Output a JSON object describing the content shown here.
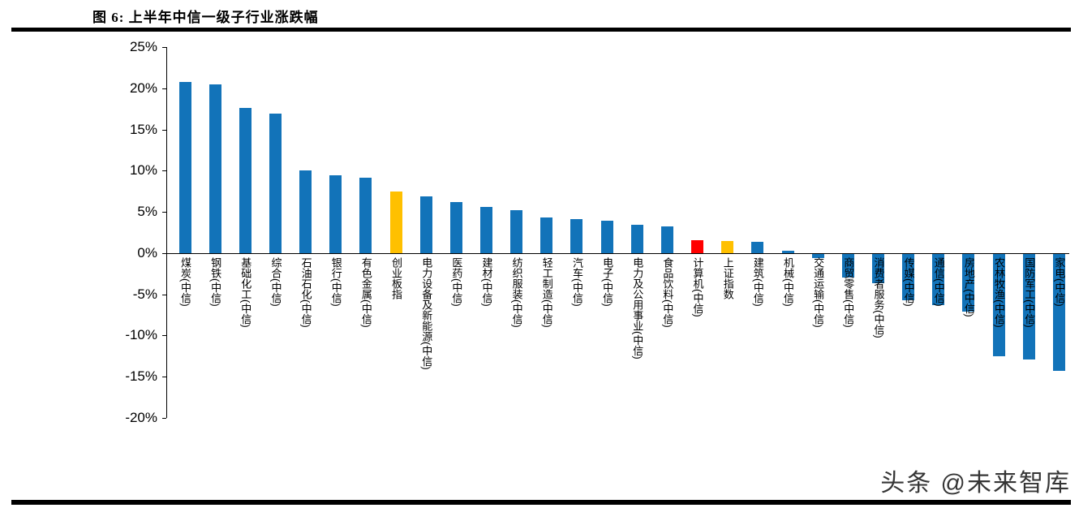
{
  "figure": {
    "title": "图 6:  上半年中信一级子行业涨跌幅",
    "watermark": "头条 @未来智库"
  },
  "chart_data": {
    "type": "bar",
    "title": "上半年中信一级子行业涨跌幅",
    "xlabel": "",
    "ylabel": "",
    "grid": false,
    "legend": "none",
    "ylim": [
      -20,
      25
    ],
    "y_ticks": [
      "25%",
      "20%",
      "15%",
      "10%",
      "5%",
      "0%",
      "-5%",
      "-10%",
      "-15%",
      "-20%"
    ],
    "categories": [
      "煤炭(中信)",
      "钢铁(中信)",
      "基础化工(中信)",
      "综合(中信)",
      "石油石化(中信)",
      "银行(中信)",
      "有色金属(中信)",
      "创业板指",
      "电力设备及新能源(中信)",
      "医药(中信)",
      "建材(中信)",
      "纺织服装(中信)",
      "轻工制造(中信)",
      "汽车(中信)",
      "电子(中信)",
      "电力及公用事业(中信)",
      "食品饮料(中信)",
      "计算机(中信)",
      "上证指数",
      "建筑(中信)",
      "机械(中信)",
      "交通运输(中信)",
      "商贸零售(中信)",
      "消费者服务(中信)",
      "传媒(中信)",
      "通信(中信)",
      "房地产(中信)",
      "农林牧渔(中信)",
      "国防军工(中信)",
      "家电(中信)"
    ],
    "values": [
      20.8,
      20.5,
      17.6,
      16.9,
      10.0,
      9.4,
      9.1,
      7.5,
      6.9,
      6.2,
      5.6,
      5.2,
      4.3,
      4.1,
      3.9,
      3.4,
      3.2,
      1.6,
      1.5,
      1.4,
      0.3,
      -0.5,
      -2.9,
      -3.6,
      -5.6,
      -6.2,
      -7.0,
      -12.4,
      -12.8,
      -14.2
    ],
    "colors": {
      "default": "#1273B9",
      "axis": "#000000"
    },
    "color_overrides": {
      "7": "#FFC000",
      "17": "#FF0000",
      "18": "#FFC000"
    }
  }
}
